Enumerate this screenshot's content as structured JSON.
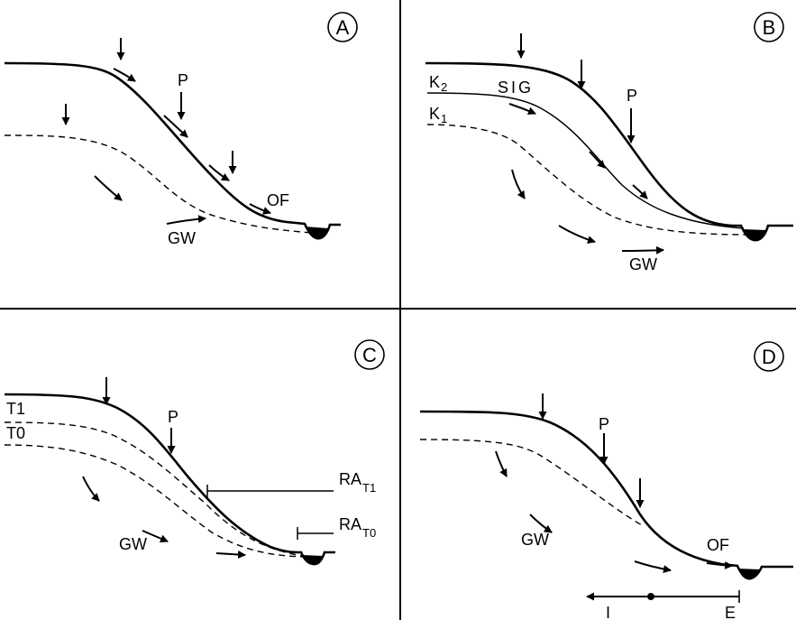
{
  "panels": {
    "a": {
      "letter": "A",
      "p": "P",
      "of": "OF",
      "gw": "GW"
    },
    "b": {
      "letter": "B",
      "p": "P",
      "k2": "K",
      "k2_sub": "2",
      "k1": "K",
      "k1_sub": "1",
      "sig": "SIG",
      "gw": "GW"
    },
    "c": {
      "letter": "C",
      "p": "P",
      "t1": "T1",
      "t0": "T0",
      "ra_t1": "RA",
      "ra_t1_sub": "T1",
      "ra_t0": "RA",
      "ra_t0_sub": "T0",
      "gw": "GW"
    },
    "d": {
      "letter": "D",
      "p": "P",
      "of": "OF",
      "gw": "GW",
      "i": "I",
      "e": "E"
    }
  }
}
